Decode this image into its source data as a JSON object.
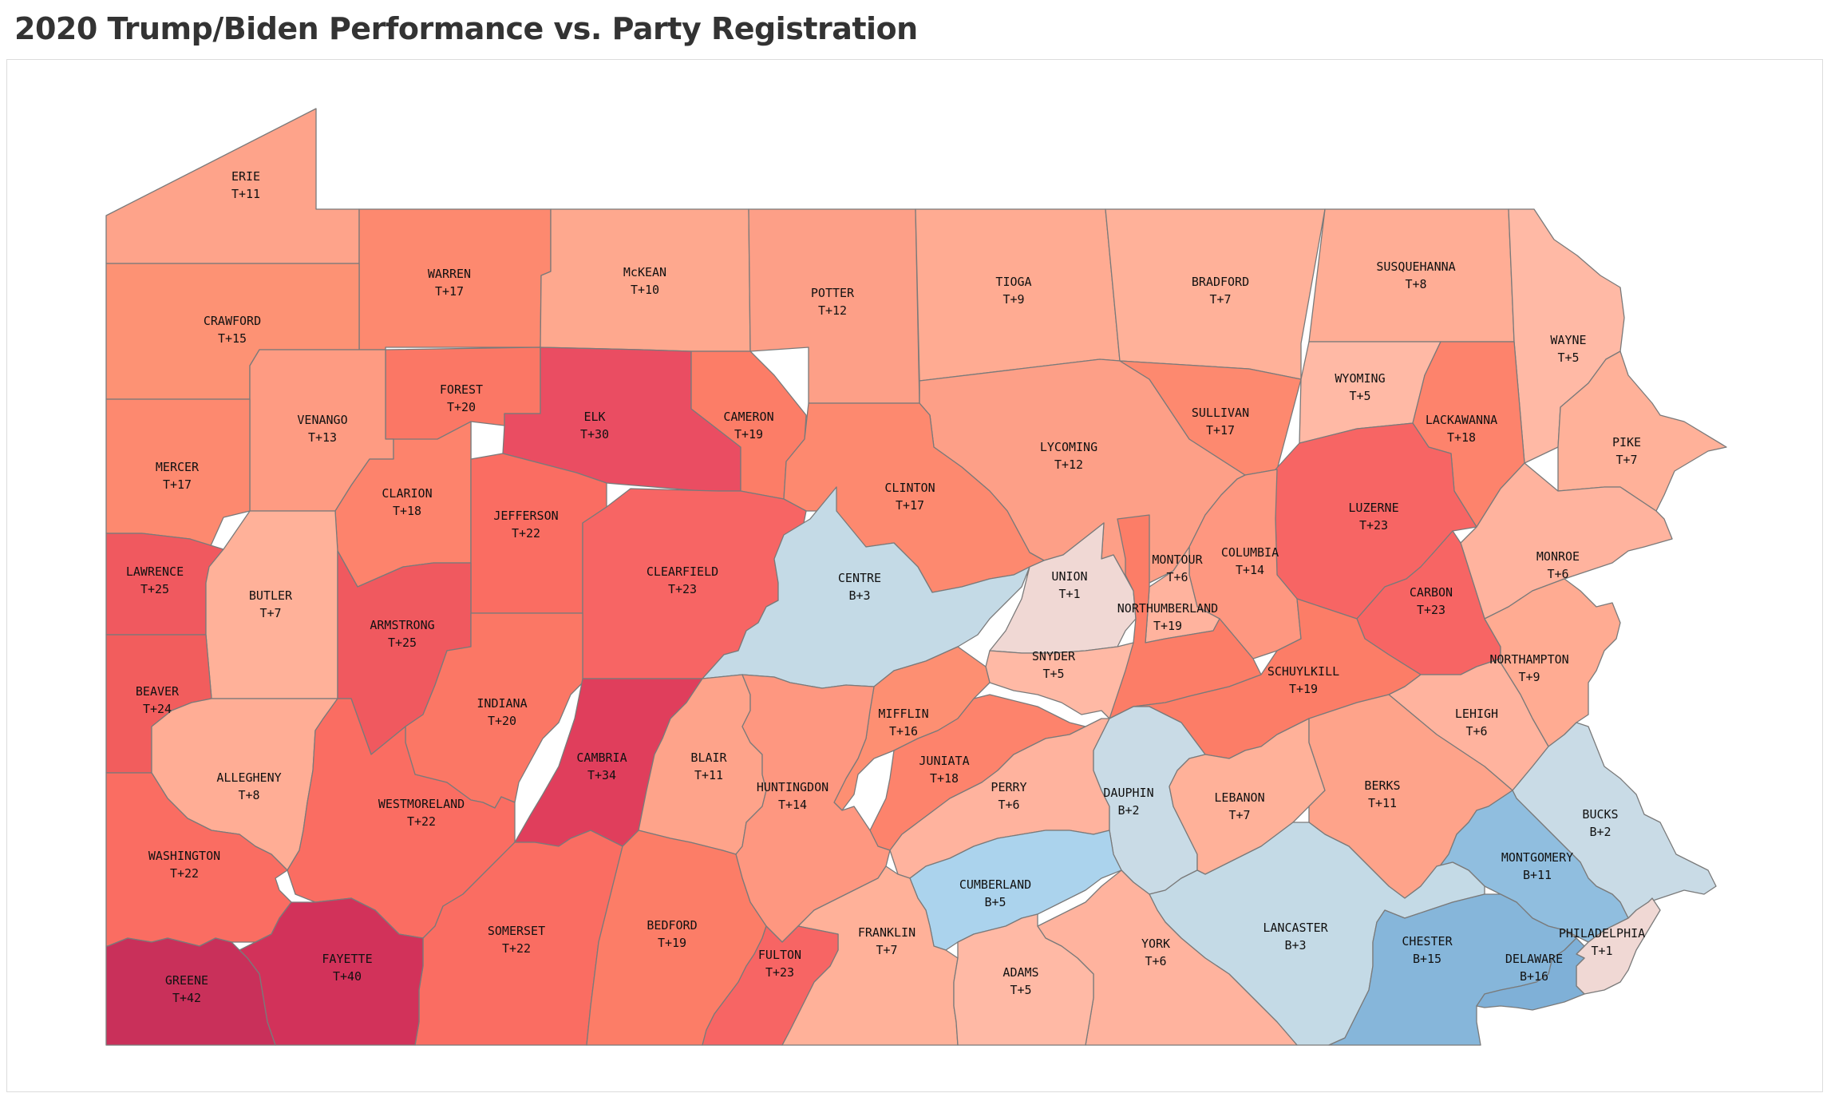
{
  "page": {
    "title": "2020 Trump/Biden Performance vs. Party Registration"
  },
  "colors": {
    "t42": "#c9305a",
    "t40": "#d2325a",
    "t34": "#e03e5c",
    "t30": "#ea4d62",
    "t25": "#f0595f",
    "t24": "#f25d5d",
    "t23": "#f76564",
    "t22": "#fa6d62",
    "t20": "#fb7765",
    "t19": "#fc7d67",
    "t18": "#fd836c",
    "t17": "#fd896f",
    "t16": "#fd8f72",
    "t15": "#fd9274",
    "t14": "#fe9780",
    "t13": "#fe9b82",
    "t12": "#fd9f87",
    "t11": "#fea38a",
    "t10": "#fea88e",
    "t9": "#ffab92",
    "t8": "#ffad95",
    "t7": "#ffb199",
    "t6": "#ffb39e",
    "t5": "#ffb9a5",
    "t1": "#f0d8d4",
    "b2": "#c9dbe6",
    "b3": "#c4dae6",
    "b5": "#abd3ed",
    "b11": "#90bedf",
    "b15": "#86b6da",
    "b16": "#7fb0d7"
  },
  "counties": {
    "erie": {
      "name": "ERIE",
      "value": "T+11",
      "color": "t11"
    },
    "warren": {
      "name": "WARREN",
      "value": "T+17",
      "color": "t17"
    },
    "mckean": {
      "name": "McKEAN",
      "value": "T+10",
      "color": "t10"
    },
    "potter": {
      "name": "POTTER",
      "value": "T+12",
      "color": "t12"
    },
    "tioga": {
      "name": "TIOGA",
      "value": "T+9",
      "color": "t9"
    },
    "bradford": {
      "name": "BRADFORD",
      "value": "T+7",
      "color": "t7"
    },
    "susquehanna": {
      "name": "SUSQUEHANNA",
      "value": "T+8",
      "color": "t8"
    },
    "wayne": {
      "name": "WAYNE",
      "value": "T+5",
      "color": "t5"
    },
    "crawford": {
      "name": "CRAWFORD",
      "value": "T+15",
      "color": "t15"
    },
    "forest": {
      "name": "FOREST",
      "value": "T+20",
      "color": "t20"
    },
    "venango": {
      "name": "VENANGO",
      "value": "T+13",
      "color": "t13"
    },
    "elk": {
      "name": "ELK",
      "value": "T+30",
      "color": "t30"
    },
    "cameron": {
      "name": "CAMERON",
      "value": "T+19",
      "color": "t19"
    },
    "lycoming": {
      "name": "LYCOMING",
      "value": "T+12",
      "color": "t12"
    },
    "sullivan": {
      "name": "SULLIVAN",
      "value": "T+17",
      "color": "t17"
    },
    "wyoming": {
      "name": "WYOMING",
      "value": "T+5",
      "color": "t5"
    },
    "lackawanna": {
      "name": "LACKAWANNA",
      "value": "T+18",
      "color": "t18"
    },
    "pike": {
      "name": "PIKE",
      "value": "T+7",
      "color": "t7"
    },
    "mercer": {
      "name": "MERCER",
      "value": "T+17",
      "color": "t17"
    },
    "clarion": {
      "name": "CLARION",
      "value": "T+18",
      "color": "t18"
    },
    "jefferson": {
      "name": "JEFFERSON",
      "value": "T+22",
      "color": "t22"
    },
    "clinton": {
      "name": "CLINTON",
      "value": "T+17",
      "color": "t17"
    },
    "luzerne": {
      "name": "LUZERNE",
      "value": "T+23",
      "color": "t23"
    },
    "columbia": {
      "name": "COLUMBIA",
      "value": "T+14",
      "color": "t14"
    },
    "montour": {
      "name": "MONTOUR",
      "value": "T+6",
      "color": "t6"
    },
    "monroe": {
      "name": "MONROE",
      "value": "T+6",
      "color": "t6"
    },
    "lawrence": {
      "name": "LAWRENCE",
      "value": "T+25",
      "color": "t25"
    },
    "butler": {
      "name": "BUTLER",
      "value": "T+7",
      "color": "t7"
    },
    "armstrong": {
      "name": "ARMSTRONG",
      "value": "T+25",
      "color": "t25"
    },
    "clearfield": {
      "name": "CLEARFIELD",
      "value": "T+23",
      "color": "t23"
    },
    "centre": {
      "name": "CENTRE",
      "value": "B+3",
      "color": "b3"
    },
    "union": {
      "name": "UNION",
      "value": "T+1",
      "color": "t1"
    },
    "northumberland": {
      "name": "NORTHUMBERLAND",
      "value": "T+19",
      "color": "t19"
    },
    "carbon": {
      "name": "CARBON",
      "value": "T+23",
      "color": "t23"
    },
    "beaver": {
      "name": "BEAVER",
      "value": "T+24",
      "color": "t24"
    },
    "indiana": {
      "name": "INDIANA",
      "value": "T+20",
      "color": "t20"
    },
    "snyder": {
      "name": "SNYDER",
      "value": "T+5",
      "color": "t5"
    },
    "schuylkill": {
      "name": "SCHUYLKILL",
      "value": "T+19",
      "color": "t19"
    },
    "northampton": {
      "name": "NORTHAMPTON",
      "value": "T+9",
      "color": "t9"
    },
    "mifflin": {
      "name": "MIFFLIN",
      "value": "T+16",
      "color": "t16"
    },
    "lehigh": {
      "name": "LEHIGH",
      "value": "T+6",
      "color": "t6"
    },
    "allegheny": {
      "name": "ALLEGHENY",
      "value": "T+8",
      "color": "t8"
    },
    "cambria": {
      "name": "CAMBRIA",
      "value": "T+34",
      "color": "t34"
    },
    "blair": {
      "name": "BLAIR",
      "value": "T+11",
      "color": "t11"
    },
    "juniata": {
      "name": "JUNIATA",
      "value": "T+18",
      "color": "t18"
    },
    "westmoreland": {
      "name": "WESTMORELAND",
      "value": "T+22",
      "color": "t22"
    },
    "huntingdon": {
      "name": "HUNTINGDON",
      "value": "T+14",
      "color": "t14"
    },
    "perry": {
      "name": "PERRY",
      "value": "T+6",
      "color": "t6"
    },
    "dauphin": {
      "name": "DAUPHIN",
      "value": "B+2",
      "color": "b2"
    },
    "lebanon": {
      "name": "LEBANON",
      "value": "T+7",
      "color": "t7"
    },
    "berks": {
      "name": "BERKS",
      "value": "T+11",
      "color": "t11"
    },
    "bucks": {
      "name": "BUCKS",
      "value": "B+2",
      "color": "b2"
    },
    "washington": {
      "name": "WASHINGTON",
      "value": "T+22",
      "color": "t22"
    },
    "montgomery": {
      "name": "MONTGOMERY",
      "value": "B+11",
      "color": "b11"
    },
    "cumberland": {
      "name": "CUMBERLAND",
      "value": "B+5",
      "color": "b5"
    },
    "somerset": {
      "name": "SOMERSET",
      "value": "T+22",
      "color": "t22"
    },
    "bedford": {
      "name": "BEDFORD",
      "value": "T+19",
      "color": "t19"
    },
    "franklin": {
      "name": "FRANKLIN",
      "value": "T+7",
      "color": "t7"
    },
    "lancaster": {
      "name": "LANCASTER",
      "value": "B+3",
      "color": "b3"
    },
    "philadelphia": {
      "name": "PHILADELPHIA",
      "value": "T+1",
      "color": "t1"
    },
    "fayette": {
      "name": "FAYETTE",
      "value": "T+40",
      "color": "t40"
    },
    "fulton": {
      "name": "FULTON",
      "value": "T+23",
      "color": "t23"
    },
    "york": {
      "name": "YORK",
      "value": "T+6",
      "color": "t6"
    },
    "chester": {
      "name": "CHESTER",
      "value": "B+15",
      "color": "b15"
    },
    "delaware": {
      "name": "DELAWARE",
      "value": "B+16",
      "color": "b16"
    },
    "greene": {
      "name": "GREENE",
      "value": "T+42",
      "color": "t42"
    },
    "adams": {
      "name": "ADAMS",
      "value": "T+5",
      "color": "t5"
    }
  }
}
